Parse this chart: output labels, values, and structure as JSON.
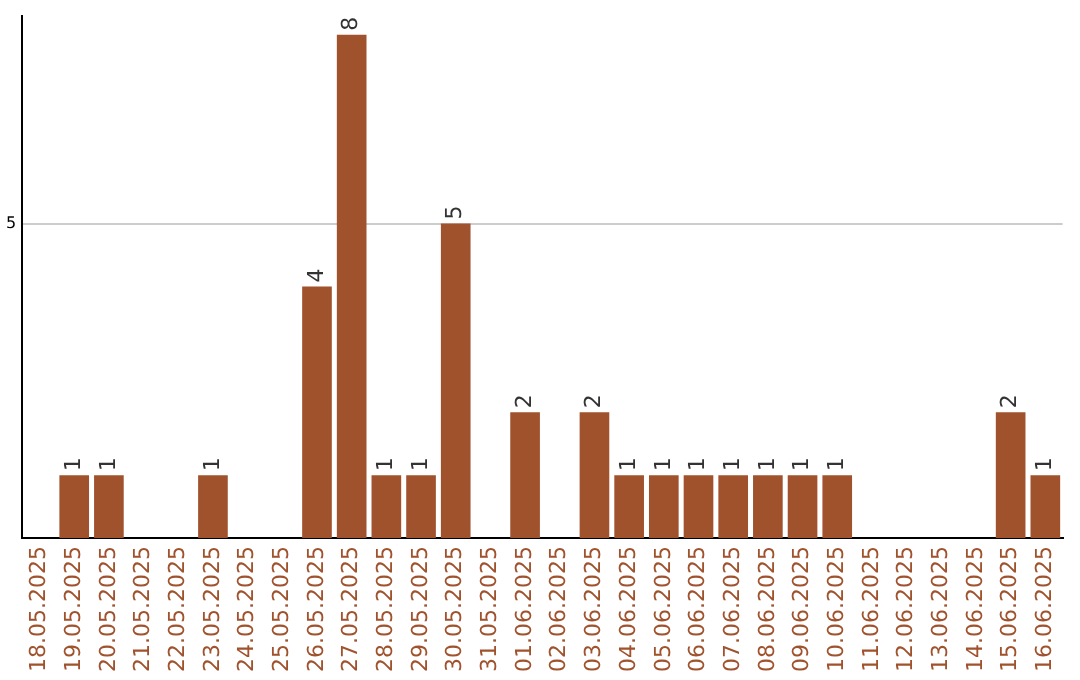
{
  "chart_data": {
    "type": "bar",
    "categories": [
      "18.05.2025",
      "19.05.2025",
      "20.05.2025",
      "21.05.2025",
      "22.05.2025",
      "23.05.2025",
      "24.05.2025",
      "25.05.2025",
      "26.05.2025",
      "27.05.2025",
      "28.05.2025",
      "29.05.2025",
      "30.05.2025",
      "31.05.2025",
      "01.06.2025",
      "02.06.2025",
      "03.06.2025",
      "04.06.2025",
      "05.06.2025",
      "06.06.2025",
      "07.06.2025",
      "08.06.2025",
      "09.06.2025",
      "10.06.2025",
      "11.06.2025",
      "12.06.2025",
      "13.06.2025",
      "14.06.2025",
      "15.06.2025",
      "16.06.2025"
    ],
    "values": [
      0,
      1,
      1,
      0,
      0,
      1,
      0,
      0,
      4,
      8,
      1,
      1,
      5,
      0,
      2,
      0,
      2,
      1,
      1,
      1,
      1,
      1,
      1,
      1,
      0,
      0,
      0,
      0,
      2,
      1
    ],
    "value_labels": [
      null,
      "1",
      "1",
      null,
      null,
      "1",
      null,
      null,
      "4",
      "8",
      "1",
      "1",
      "5",
      null,
      "2",
      null,
      "2",
      "1",
      "1",
      "1",
      "1",
      "1",
      "1",
      "1",
      null,
      null,
      null,
      null,
      "2",
      "1"
    ],
    "color": "#a0522d",
    "ylim": [
      0,
      8.3
    ],
    "yticks": [
      5
    ],
    "grid": "y",
    "legend": false
  }
}
